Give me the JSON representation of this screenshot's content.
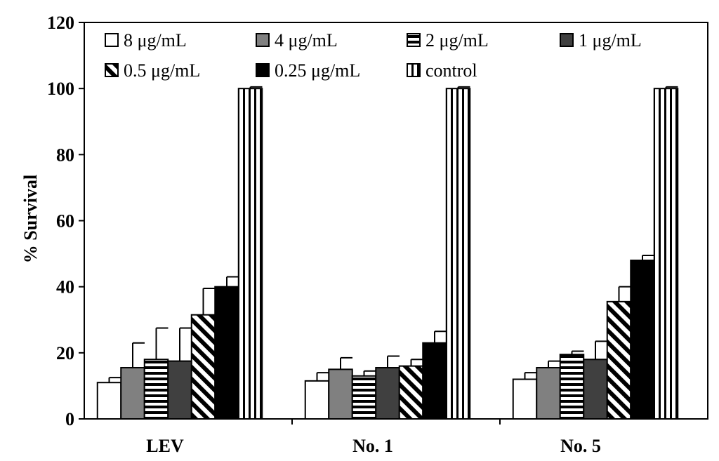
{
  "chart_data": {
    "type": "bar",
    "title": "",
    "xlabel": "",
    "ylabel": "% Survival",
    "ylim": [
      0,
      120
    ],
    "yticks": [
      0,
      20,
      40,
      60,
      80,
      100,
      120
    ],
    "categories": [
      "LEV",
      "No. 1",
      "No. 5"
    ],
    "legend_position": "top",
    "series": [
      {
        "name": "8 μg/mL",
        "pattern": "white",
        "values": [
          11,
          11.5,
          12
        ],
        "errors": [
          1.5,
          2.5,
          2
        ]
      },
      {
        "name": "4 μg/mL",
        "pattern": "gray",
        "values": [
          15.5,
          15,
          15.5
        ],
        "errors": [
          7.5,
          3.5,
          2
        ]
      },
      {
        "name": "2 μg/mL",
        "pattern": "hstripes",
        "values": [
          18,
          13,
          19.5
        ],
        "errors": [
          9.5,
          1.5,
          1
        ]
      },
      {
        "name": "1 μg/mL",
        "pattern": "darkgray",
        "values": [
          17.5,
          15.5,
          18
        ],
        "errors": [
          10,
          3.5,
          5.5
        ]
      },
      {
        "name": "0.5 μg/mL",
        "pattern": "diagonal",
        "values": [
          31.5,
          16,
          35.5
        ],
        "errors": [
          8,
          2,
          4.5
        ]
      },
      {
        "name": "0.25 μg/mL",
        "pattern": "black",
        "values": [
          40,
          23,
          48
        ],
        "errors": [
          3,
          3.5,
          1.5
        ]
      },
      {
        "name": "control",
        "pattern": "vstripes",
        "values": [
          100,
          100,
          100
        ],
        "errors": [
          0.5,
          0.5,
          0.5
        ]
      }
    ]
  }
}
